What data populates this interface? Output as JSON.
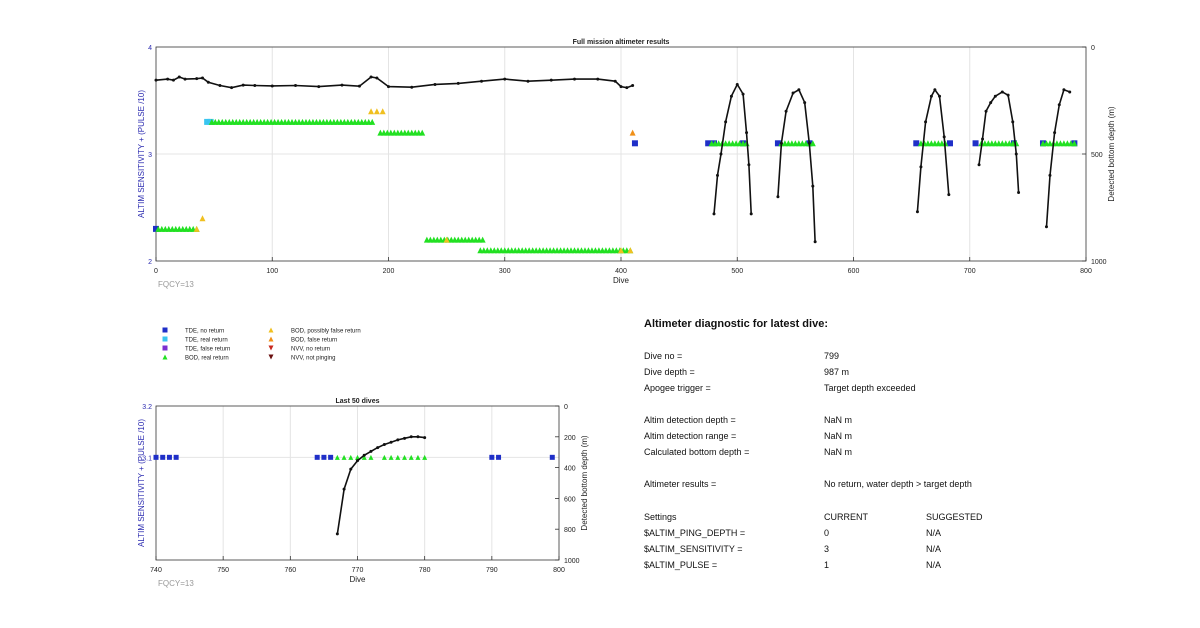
{
  "chart_data": [
    {
      "type": "scatter",
      "title": "Full mission altimeter results",
      "xlabel": "Dive",
      "ylabel": "ALTIM SENSITIVITY + (PULSE /10)",
      "y2label": "Detected bottom depth (m)",
      "xlim": [
        0,
        800
      ],
      "ylim": [
        2,
        4
      ],
      "y2lim": [
        0,
        1000
      ],
      "y2_reversed": true,
      "xticks": [
        "0",
        "100",
        "200",
        "300",
        "400",
        "500",
        "600",
        "700",
        "800"
      ],
      "yticks": [
        "2",
        "3",
        "4"
      ],
      "y2ticks": [
        "0",
        "500",
        "1000"
      ],
      "grid": true,
      "footnote": "FQCY=13",
      "series": [
        {
          "name": "TDE, no return",
          "color": "#1f2fc8",
          "marker": "square",
          "points": [
            [
              0,
              2.3
            ],
            [
              412,
              3.1
            ],
            [
              475,
              3.1
            ],
            [
              480,
              3.1
            ],
            [
              505,
              3.1
            ],
            [
              535,
              3.1
            ],
            [
              562,
              3.1
            ],
            [
              654,
              3.1
            ],
            [
              683,
              3.1
            ],
            [
              705,
              3.1
            ],
            [
              738,
              3.1
            ],
            [
              763,
              3.1
            ],
            [
              790,
              3.1
            ]
          ]
        },
        {
          "name": "TDE, real return",
          "color": "#39c5f0",
          "marker": "square",
          "segments": [
            [
              44,
              48,
              3.3
            ]
          ]
        },
        {
          "name": "BOD, real return",
          "color": "#22e022",
          "marker": "triangle",
          "segments": [
            [
              2,
              37,
              2.3
            ],
            [
              48,
              186,
              3.3
            ],
            [
              193,
              230,
              3.2
            ],
            [
              233,
              281,
              2.2
            ],
            [
              279,
              408,
              2.1
            ],
            [
              478,
              510,
              3.1
            ],
            [
              538,
              565,
              3.1
            ],
            [
              658,
              680,
              3.1
            ],
            [
              710,
              740,
              3.1
            ],
            [
              763,
              790,
              3.1
            ]
          ]
        },
        {
          "name": "BOD, possibly false return",
          "color": "#f0c020",
          "marker": "triangle",
          "points": [
            [
              35,
              2.3
            ],
            [
              40,
              2.4
            ],
            [
              185,
              3.4
            ],
            [
              190,
              3.4
            ],
            [
              195,
              3.4
            ],
            [
              250,
              2.2
            ],
            [
              400,
              2.1
            ],
            [
              408,
              2.1
            ]
          ]
        },
        {
          "name": "BOD, false return",
          "color": "#f09018",
          "marker": "triangle",
          "points": [
            [
              410,
              3.2
            ]
          ]
        }
      ],
      "depth_series": [
        {
          "name": "Detected bottom depth",
          "segments": [
            [
              [
                0,
                155
              ],
              [
                10,
                150
              ],
              [
                15,
                155
              ],
              [
                20,
                140
              ],
              [
                25,
                150
              ],
              [
                35,
                148
              ],
              [
                40,
                145
              ],
              [
                45,
                165
              ],
              [
                55,
                180
              ],
              [
                65,
                190
              ],
              [
                75,
                178
              ],
              [
                85,
                180
              ],
              [
                100,
                182
              ],
              [
                120,
                180
              ],
              [
                140,
                185
              ],
              [
                160,
                178
              ],
              [
                175,
                183
              ],
              [
                185,
                140
              ],
              [
                190,
                145
              ],
              [
                200,
                185
              ],
              [
                220,
                188
              ],
              [
                240,
                175
              ],
              [
                260,
                170
              ],
              [
                280,
                160
              ],
              [
                300,
                150
              ],
              [
                320,
                160
              ],
              [
                340,
                155
              ],
              [
                360,
                150
              ],
              [
                380,
                150
              ],
              [
                395,
                160
              ],
              [
                400,
                185
              ],
              [
                405,
                190
              ],
              [
                410,
                180
              ]
            ],
            [
              [
                480,
                780
              ],
              [
                483,
                600
              ],
              [
                486,
                500
              ],
              [
                490,
                350
              ],
              [
                495,
                230
              ],
              [
                500,
                175
              ],
              [
                505,
                220
              ],
              [
                508,
                400
              ],
              [
                510,
                550
              ],
              [
                512,
                780
              ]
            ],
            [
              [
                535,
                700
              ],
              [
                538,
                450
              ],
              [
                542,
                300
              ],
              [
                548,
                215
              ],
              [
                553,
                200
              ],
              [
                558,
                260
              ],
              [
                562,
                450
              ],
              [
                565,
                650
              ],
              [
                567,
                910
              ]
            ],
            [
              [
                655,
                770
              ],
              [
                658,
                560
              ],
              [
                662,
                350
              ],
              [
                667,
                230
              ],
              [
                670,
                200
              ],
              [
                674,
                230
              ],
              [
                678,
                420
              ],
              [
                682,
                690
              ]
            ],
            [
              [
                708,
                550
              ],
              [
                711,
                430
              ],
              [
                714,
                300
              ],
              [
                718,
                260
              ],
              [
                722,
                230
              ],
              [
                728,
                210
              ],
              [
                733,
                225
              ],
              [
                737,
                350
              ],
              [
                740,
                500
              ],
              [
                742,
                680
              ]
            ],
            [
              [
                766,
                840
              ],
              [
                769,
                600
              ],
              [
                773,
                400
              ],
              [
                777,
                270
              ],
              [
                781,
                200
              ],
              [
                786,
                210
              ]
            ]
          ]
        }
      ]
    },
    {
      "type": "scatter",
      "title": "Last 50 dives",
      "xlabel": "Dive",
      "ylabel": "ALTIM SENSITIVITY + (PULSE /10)",
      "y2label": "Detected bottom depth (m)",
      "xlim": [
        740,
        800
      ],
      "ylim": [
        2.9,
        3.2
      ],
      "y2lim": [
        0,
        1000
      ],
      "y2_reversed": true,
      "xticks": [
        "740",
        "750",
        "760",
        "770",
        "780",
        "790",
        "800"
      ],
      "yticks": [
        "3.1",
        "3.2"
      ],
      "y2ticks": [
        "0",
        "200",
        "400",
        "600",
        "800",
        "1000"
      ],
      "grid": true,
      "footnote": "FQCY=13",
      "series": [
        {
          "name": "TDE, no return",
          "color": "#1f2fc8",
          "marker": "square",
          "points": [
            [
              740,
              3.1
            ],
            [
              741,
              3.1
            ],
            [
              742,
              3.1
            ],
            [
              743,
              3.1
            ],
            [
              764,
              3.1
            ],
            [
              765,
              3.1
            ],
            [
              766,
              3.1
            ],
            [
              790,
              3.1
            ],
            [
              791,
              3.1
            ],
            [
              799,
              3.1
            ]
          ]
        },
        {
          "name": "BOD, real return",
          "color": "#22e022",
          "marker": "triangle",
          "points": [
            [
              767,
              3.1
            ],
            [
              768,
              3.1
            ],
            [
              769,
              3.1
            ],
            [
              770,
              3.1
            ],
            [
              771,
              3.1
            ],
            [
              772,
              3.1
            ],
            [
              774,
              3.1
            ],
            [
              775,
              3.1
            ],
            [
              776,
              3.1
            ],
            [
              777,
              3.1
            ],
            [
              778,
              3.1
            ],
            [
              779,
              3.1
            ],
            [
              780,
              3.1
            ]
          ]
        }
      ],
      "depth_series": [
        {
          "name": "Detected bottom depth",
          "segments": [
            [
              [
                767,
                830
              ],
              [
                768,
                540
              ],
              [
                769,
                410
              ],
              [
                770,
                355
              ],
              [
                771,
                320
              ],
              [
                772,
                295
              ],
              [
                773,
                270
              ],
              [
                774,
                250
              ],
              [
                775,
                235
              ],
              [
                776,
                220
              ],
              [
                777,
                210
              ],
              [
                778,
                200
              ],
              [
                779,
                200
              ],
              [
                780,
                205
              ]
            ]
          ]
        }
      ]
    }
  ],
  "legend": {
    "items": [
      {
        "label": "TDE, no return",
        "color": "#1f2fc8",
        "marker": "square"
      },
      {
        "label": "TDE, real return",
        "color": "#39c5f0",
        "marker": "square"
      },
      {
        "label": "TDE, false return",
        "color": "#7b2fd0",
        "marker": "square"
      },
      {
        "label": "BOD, real return",
        "color": "#22e022",
        "marker": "triangle"
      },
      {
        "label": "BOD, possibly false return",
        "color": "#f0c020",
        "marker": "triangle"
      },
      {
        "label": "BOD, false return",
        "color": "#f09018",
        "marker": "triangle"
      },
      {
        "label": "NVV, no return",
        "color": "#c8281e",
        "marker": "triangle-down"
      },
      {
        "label": "NVV, not pinging",
        "color": "#6a1010",
        "marker": "triangle-down"
      }
    ]
  },
  "diagnostic": {
    "title": "Altimeter diagnostic for latest dive:",
    "rows": [
      {
        "label": "Dive no =",
        "value": "799"
      },
      {
        "label": "Dive depth =",
        "value": "987 m"
      },
      {
        "label": "Apogee trigger =",
        "value": "Target depth exceeded"
      },
      {
        "label": "Altim detection depth =",
        "value": "NaN m"
      },
      {
        "label": "Altim detection range =",
        "value": "NaN m"
      },
      {
        "label": "Calculated bottom depth =",
        "value": "NaN m"
      },
      {
        "label": "Altimeter results =",
        "value": "No return, water depth > target depth"
      }
    ],
    "settings": {
      "header": [
        "Settings",
        "CURRENT",
        "SUGGESTED"
      ],
      "rows": [
        [
          "$ALTIM_PING_DEPTH =",
          "0",
          "N/A"
        ],
        [
          "$ALTIM_SENSITIVITY =",
          "3",
          "N/A"
        ],
        [
          "$ALTIM_PULSE =",
          "1",
          "N/A"
        ]
      ]
    }
  }
}
